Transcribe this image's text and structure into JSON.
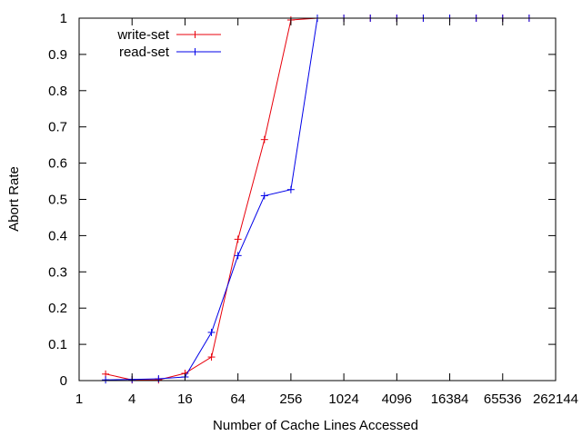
{
  "chart_data": {
    "type": "line",
    "xlabel": "Number of Cache Lines Accessed",
    "ylabel": "Abort Rate",
    "x_scale": "log2",
    "xlim": [
      1,
      262144
    ],
    "ylim": [
      0,
      1
    ],
    "x_ticks": [
      "1",
      "4",
      "16",
      "64",
      "256",
      "1024",
      "4096",
      "16384",
      "65536",
      "262144"
    ],
    "x_tick_values": [
      1,
      4,
      16,
      64,
      256,
      1024,
      4096,
      16384,
      65536,
      262144
    ],
    "y_ticks": [
      "0",
      "0.1",
      "0.2",
      "0.3",
      "0.4",
      "0.5",
      "0.6",
      "0.7",
      "0.8",
      "0.9",
      "1"
    ],
    "y_tick_values": [
      0,
      0.1,
      0.2,
      0.3,
      0.4,
      0.5,
      0.6,
      0.7,
      0.8,
      0.9,
      1
    ],
    "grid": false,
    "legend": "top-left",
    "series": [
      {
        "name": "write-set",
        "color": "#e8000b",
        "x": [
          2,
          4,
          8,
          16,
          32,
          64,
          128,
          256,
          512,
          1024,
          2048,
          4096,
          8192,
          16384,
          32768,
          65536,
          131072
        ],
        "y": [
          0.018,
          0.002,
          0.002,
          0.02,
          0.065,
          0.39,
          0.665,
          0.995,
          1,
          1,
          1,
          1,
          1,
          1,
          1,
          1,
          1
        ]
      },
      {
        "name": "read-set",
        "color": "#0000e8",
        "x": [
          2,
          4,
          8,
          16,
          32,
          64,
          128,
          256,
          512,
          1024,
          2048,
          4096,
          8192,
          16384,
          32768,
          65536,
          131072
        ],
        "y": [
          0.002,
          0.003,
          0.005,
          0.01,
          0.133,
          0.345,
          0.51,
          0.527,
          1,
          1,
          1,
          1,
          1,
          1,
          1,
          1,
          1
        ]
      }
    ]
  }
}
